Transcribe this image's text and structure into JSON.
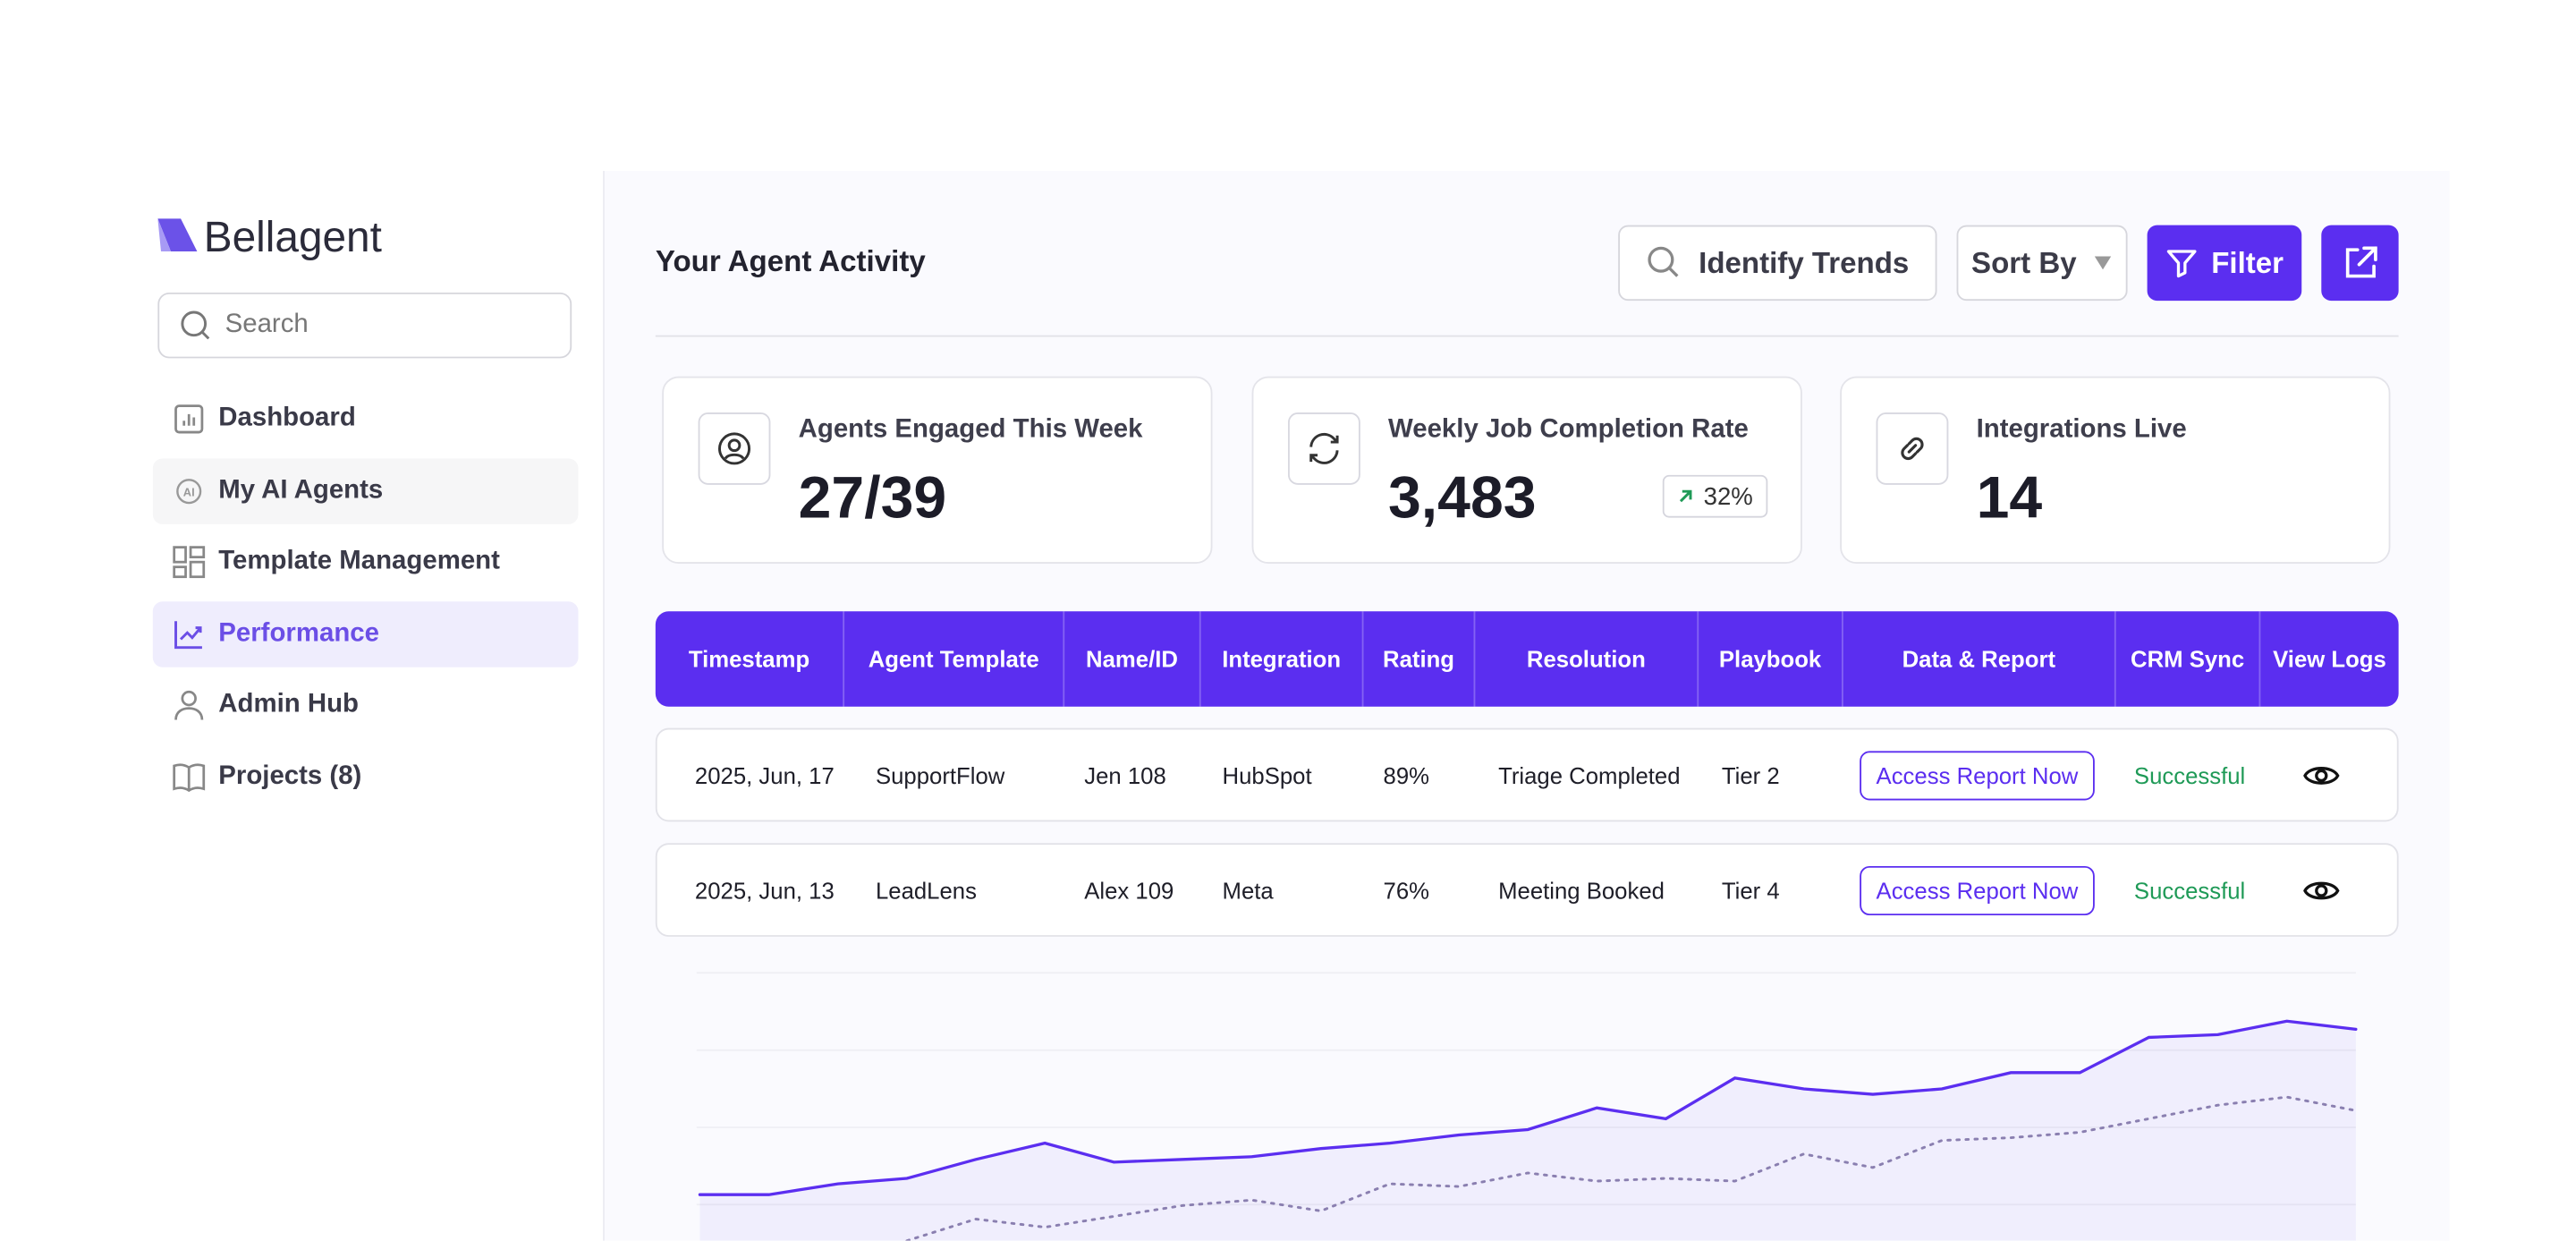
{
  "sidebar": {
    "logo": "Bellagent",
    "search": "Search",
    "nav": [
      "Dashboard",
      "My AI Agents",
      "Template Management",
      "Performance",
      "Admin Hub",
      "Projects (8)"
    ]
  },
  "header": {
    "title": "Your Agent Activity",
    "search": "Identify Trends",
    "sort": "Sort By",
    "filter": "Filter"
  },
  "stats": [
    {
      "label": "Agents Engaged This Week",
      "value": "27/39"
    },
    {
      "label": "Weekly Job Completion Rate",
      "value": "3,483",
      "change": "32%"
    },
    {
      "label": "Integrations Live",
      "value": "14"
    }
  ],
  "table": {
    "columns": [
      "Timestamp",
      "Agent Template",
      "Name/ID",
      "Integration",
      "Rating",
      "Resolution",
      "Playbook",
      "Data & Report",
      "CRM Sync",
      "View Logs"
    ],
    "rows": [
      [
        "2025, Jun, 17",
        "SupportFlow",
        "Jen 108",
        "HubSpot",
        "89%",
        "Triage Completed",
        "Tier 2",
        "Access Report Now",
        "Successful"
      ],
      [
        "2025, Jun, 13",
        "LeadLens",
        "Alex 109",
        "Meta",
        "76%",
        "Meeting Booked",
        "Tier 4",
        "Access Report Now",
        "Successful"
      ]
    ]
  },
  "chart_data": {
    "type": "line",
    "ylim": [
      0,
      100
    ],
    "x": [
      0,
      1,
      2,
      3,
      4,
      5,
      6,
      7,
      8,
      9,
      10,
      11,
      12,
      13,
      14,
      15,
      16,
      17,
      18,
      19,
      20,
      21,
      22,
      23,
      24
    ],
    "xlim": [
      0,
      24
    ],
    "series": [
      {
        "color": "#5b2ef0",
        "style": "solid",
        "values": [
          17,
          17,
          21,
          23,
          30,
          36,
          29,
          30,
          31,
          34,
          36,
          39,
          41,
          49,
          45,
          60,
          56,
          54,
          56,
          62,
          62,
          75,
          76,
          81,
          78
        ]
      },
      {
        "color": "#8a7fb0",
        "style": "dotted",
        "values": [
          null,
          null,
          null,
          0,
          8,
          5,
          9,
          13,
          15,
          11,
          21,
          20,
          25,
          22,
          23,
          22,
          32,
          27,
          37,
          38,
          40,
          45,
          50,
          53,
          48
        ]
      }
    ]
  }
}
